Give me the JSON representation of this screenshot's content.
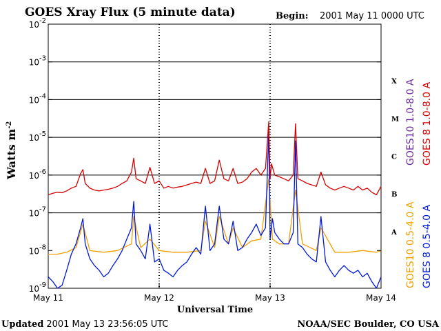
{
  "chart_data": {
    "type": "line",
    "title": "GOES Xray Flux (5 minute data)",
    "begin_label": "Begin:",
    "begin_value": "2001 May 11 0000 UTC",
    "ylabel": "Watts m",
    "ylabel_sup": "-2",
    "xlabel": "Universal Time",
    "yscale": "log",
    "ylim": [
      1e-09,
      0.01
    ],
    "xlim": [
      0,
      72
    ],
    "x_unit": "hours since 2001 May 11 0000 UTC",
    "x_ticks": [
      {
        "x": 0,
        "label": "May 11"
      },
      {
        "x": 24,
        "label": "May 12"
      },
      {
        "x": 48,
        "label": "May 13"
      },
      {
        "x": 72,
        "label": "May 14"
      }
    ],
    "y_ticks": [
      {
        "exp": -9,
        "base": "10",
        "sup": "-9"
      },
      {
        "exp": -8,
        "base": "10",
        "sup": "-8"
      },
      {
        "exp": -7,
        "base": "10",
        "sup": "-7"
      },
      {
        "exp": -6,
        "base": "10",
        "sup": "-6"
      },
      {
        "exp": -5,
        "base": "10",
        "sup": "-5"
      },
      {
        "exp": -4,
        "base": "10",
        "sup": "-4"
      },
      {
        "exp": -3,
        "base": "10",
        "sup": "-3"
      },
      {
        "exp": -2,
        "base": "10",
        "sup": "-2"
      }
    ],
    "flare_classes": [
      {
        "label": "A",
        "exp": -7.5
      },
      {
        "label": "B",
        "exp": -6.5
      },
      {
        "label": "C",
        "exp": -5.5
      },
      {
        "label": "M",
        "exp": -4.5
      },
      {
        "label": "X",
        "exp": -3.5
      }
    ],
    "gridlines_y": [
      -7,
      -6,
      -5,
      -4,
      -3
    ],
    "legend_placement": "right (vertical)",
    "series": [
      {
        "name": "GOES 8 1.0-8.0 A",
        "color": "#d40000",
        "x": [
          0,
          1,
          2,
          3,
          4,
          5,
          6,
          7,
          7.5,
          8,
          9,
          10,
          11,
          12,
          13,
          14,
          15,
          16,
          17,
          18,
          18.5,
          19,
          20,
          21,
          22,
          23,
          24,
          25,
          26,
          27,
          28,
          29,
          30,
          31,
          32,
          33,
          34,
          35,
          36,
          37,
          38,
          39,
          40,
          41,
          42,
          43,
          44,
          45,
          46,
          47,
          47.7,
          48,
          48.3,
          49,
          50,
          51,
          52,
          53,
          53.5,
          54,
          55,
          56,
          57,
          58,
          59,
          60,
          61,
          62,
          63,
          64,
          65,
          66,
          67,
          68,
          69,
          70,
          71,
          72
        ],
        "values": [
          3e-07,
          3.3e-07,
          3.5e-07,
          3.4e-07,
          3.8e-07,
          4.5e-07,
          5e-07,
          1.1e-06,
          1.4e-06,
          6e-07,
          4.5e-07,
          4e-07,
          3.8e-07,
          4e-07,
          4.2e-07,
          4.5e-07,
          5e-07,
          6e-07,
          7e-07,
          1.2e-06,
          2.8e-06,
          8e-07,
          7e-07,
          6e-07,
          1.6e-06,
          6e-07,
          7e-07,
          4.5e-07,
          5e-07,
          4.5e-07,
          4.8e-07,
          5e-07,
          5.5e-07,
          6e-07,
          6.5e-07,
          6e-07,
          1.5e-06,
          6e-07,
          7e-07,
          2.5e-06,
          8e-07,
          7e-07,
          1.5e-06,
          6e-07,
          6.5e-07,
          8e-07,
          1.2e-06,
          1.5e-06,
          1e-06,
          1.5e-06,
          2.6e-05,
          8e-07,
          2e-06,
          1e-06,
          9e-07,
          8e-07,
          7e-07,
          1e-06,
          2.3e-05,
          8e-07,
          7e-07,
          6e-07,
          5.5e-07,
          5e-07,
          1.2e-06,
          5.5e-07,
          4.5e-07,
          4e-07,
          4.5e-07,
          5e-07,
          4.5e-07,
          4e-07,
          5e-07,
          4e-07,
          4.5e-07,
          3.5e-07,
          3e-07,
          5e-07
        ]
      },
      {
        "name": "GOES10 1.0-8.0 A",
        "color": "#6a2aa0",
        "x": [],
        "values": []
      },
      {
        "name": "GOES 8 0.5-4.0 A",
        "color": "#0018d8",
        "x": [
          0,
          1,
          2,
          3,
          4,
          5,
          6,
          7,
          7.5,
          8,
          9,
          10,
          11,
          12,
          13,
          14,
          15,
          16,
          17,
          18,
          18.5,
          19,
          20,
          21,
          22,
          23,
          24,
          25,
          26,
          27,
          28,
          29,
          30,
          31,
          32,
          33,
          34,
          35,
          36,
          37,
          38,
          39,
          40,
          41,
          42,
          43,
          44,
          45,
          46,
          47,
          47.7,
          48,
          48.5,
          49,
          50,
          51,
          52,
          53,
          53.5,
          54,
          55,
          56,
          57,
          58,
          59,
          60,
          61,
          62,
          63,
          64,
          65,
          66,
          67,
          68,
          69,
          70,
          71,
          72
        ],
        "values": [
          2e-09,
          1.5e-09,
          1e-09,
          1.2e-09,
          3e-09,
          8e-09,
          1.5e-08,
          4e-08,
          7e-08,
          1.5e-08,
          6e-09,
          4e-09,
          3e-09,
          2e-09,
          2.5e-09,
          4e-09,
          6e-09,
          1e-08,
          2e-08,
          4e-08,
          2e-07,
          1.5e-08,
          1e-08,
          6e-09,
          5e-08,
          5e-09,
          6e-09,
          3e-09,
          2.5e-09,
          2e-09,
          3e-09,
          4e-09,
          5e-09,
          8e-09,
          1.2e-08,
          8e-09,
          1.5e-07,
          1e-08,
          1.5e-08,
          1.5e-07,
          2e-08,
          1.5e-08,
          6e-08,
          1e-08,
          1.2e-08,
          2e-08,
          3e-08,
          5e-08,
          2.5e-08,
          4e-08,
          1.4e-05,
          2e-08,
          7e-08,
          3e-08,
          2e-08,
          1.5e-08,
          1.5e-08,
          3e-08,
          8e-06,
          1.5e-08,
          1.2e-08,
          8e-09,
          6e-09,
          5e-09,
          8e-08,
          5e-09,
          3e-09,
          2e-09,
          3e-09,
          4e-09,
          3e-09,
          2.5e-09,
          3e-09,
          2e-09,
          2.5e-09,
          1.5e-09,
          1e-09,
          2e-09
        ]
      },
      {
        "name": "GOES10 0.5-4.0 A",
        "color": "#f0a000",
        "x": [
          0,
          2,
          4,
          6,
          7.5,
          9,
          12,
          15,
          18,
          18.5,
          20,
          22,
          24,
          27,
          30,
          33,
          34,
          36,
          37,
          39,
          40,
          42,
          44,
          46,
          47.7,
          48.5,
          50,
          52,
          53.5,
          55,
          58,
          59,
          62,
          65,
          68,
          71,
          72
        ],
        "values": [
          8e-09,
          8e-09,
          9e-09,
          1.2e-08,
          5e-08,
          1e-08,
          9e-09,
          1e-08,
          1.5e-08,
          8e-08,
          1.2e-08,
          2e-08,
          1e-08,
          9e-09,
          9e-09,
          1e-08,
          6e-08,
          1.2e-08,
          8e-08,
          1.5e-08,
          4e-08,
          1.2e-08,
          1.8e-08,
          2e-08,
          8e-07,
          2e-08,
          1.5e-08,
          1.5e-08,
          4e-07,
          1.5e-08,
          1e-08,
          4e-08,
          9e-09,
          9e-09,
          1e-08,
          9e-09,
          1e-08
        ]
      }
    ]
  },
  "footer": {
    "updated_label": "Updated",
    "updated_value": "2001 May 13 23:56:05 UTC",
    "credit": "NOAA/SEC Boulder, CO USA"
  }
}
